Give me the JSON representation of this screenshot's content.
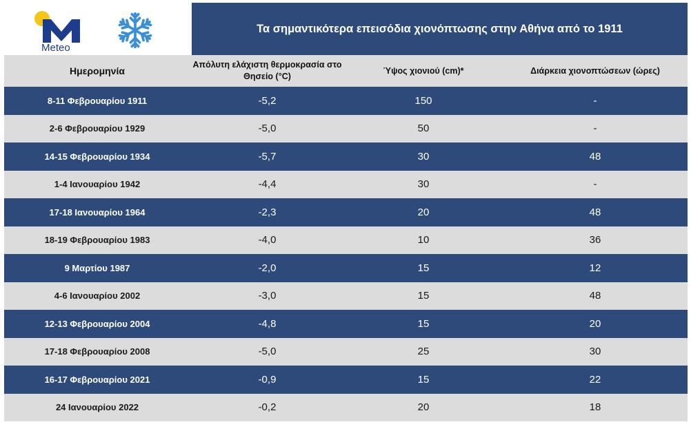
{
  "logo": {
    "brand": "Meteo",
    "logo_icon": "meteo-m-logo",
    "snow_icon": "snowflake-icon",
    "sun_color": "#f5c518",
    "m_color": "#1e3c8c",
    "snow_color": "#3a8fd6"
  },
  "title": "Τα σημαντικότερα επεισόδια χιονόπτωσης στην Αθήνα από το 1911",
  "colors": {
    "dark_row": "#2d4a7a",
    "light_row": "#dcdcdc"
  },
  "table": {
    "headers": {
      "date": "Ημερομηνία",
      "min_temp": "Απόλυτη ελάχιστη θερμοκρασία στο Θησείο (°C)",
      "snow_depth": "Ύψος χιονιού (cm)*",
      "duration": "Διάρκεια χιονοπτώσεων (ώρες)"
    },
    "rows": [
      {
        "date": "8-11 Φεβρουαρίου 1911",
        "min_temp": "-5,2",
        "snow_depth": "150",
        "duration": "-"
      },
      {
        "date": "2-6 Φεβρουαρίου 1929",
        "min_temp": "-5,0",
        "snow_depth": "50",
        "duration": "-"
      },
      {
        "date": "14-15 Φεβρουαρίου 1934",
        "min_temp": "-5,7",
        "snow_depth": "30",
        "duration": "48"
      },
      {
        "date": "1-4 Ιανουαρίου 1942",
        "min_temp": "-4,4",
        "snow_depth": "30",
        "duration": "-"
      },
      {
        "date": "17-18 Ιανουαρίου 1964",
        "min_temp": "-2,3",
        "snow_depth": "20",
        "duration": "48"
      },
      {
        "date": "18-19 Φεβρουαρίου 1983",
        "min_temp": "-4,0",
        "snow_depth": "10",
        "duration": "36"
      },
      {
        "date": "9 Μαρτίου 1987",
        "min_temp": "-2,0",
        "snow_depth": "15",
        "duration": "12"
      },
      {
        "date": "4-6 Ιανουαρίου 2002",
        "min_temp": "-3,0",
        "snow_depth": "15",
        "duration": "48"
      },
      {
        "date": "12-13 Φεβρουαρίου 2004",
        "min_temp": "-4,8",
        "snow_depth": "15",
        "duration": "20"
      },
      {
        "date": "17-18 Φεβρουαρίου 2008",
        "min_temp": "-5,0",
        "snow_depth": "25",
        "duration": "30"
      },
      {
        "date": "16-17 Φεβρουαρίου 2021",
        "min_temp": "-0,9",
        "snow_depth": "15",
        "duration": "22"
      },
      {
        "date": "24 Ιανουαρίου 2022",
        "min_temp": "-0,2",
        "snow_depth": "20",
        "duration": "18"
      }
    ]
  }
}
